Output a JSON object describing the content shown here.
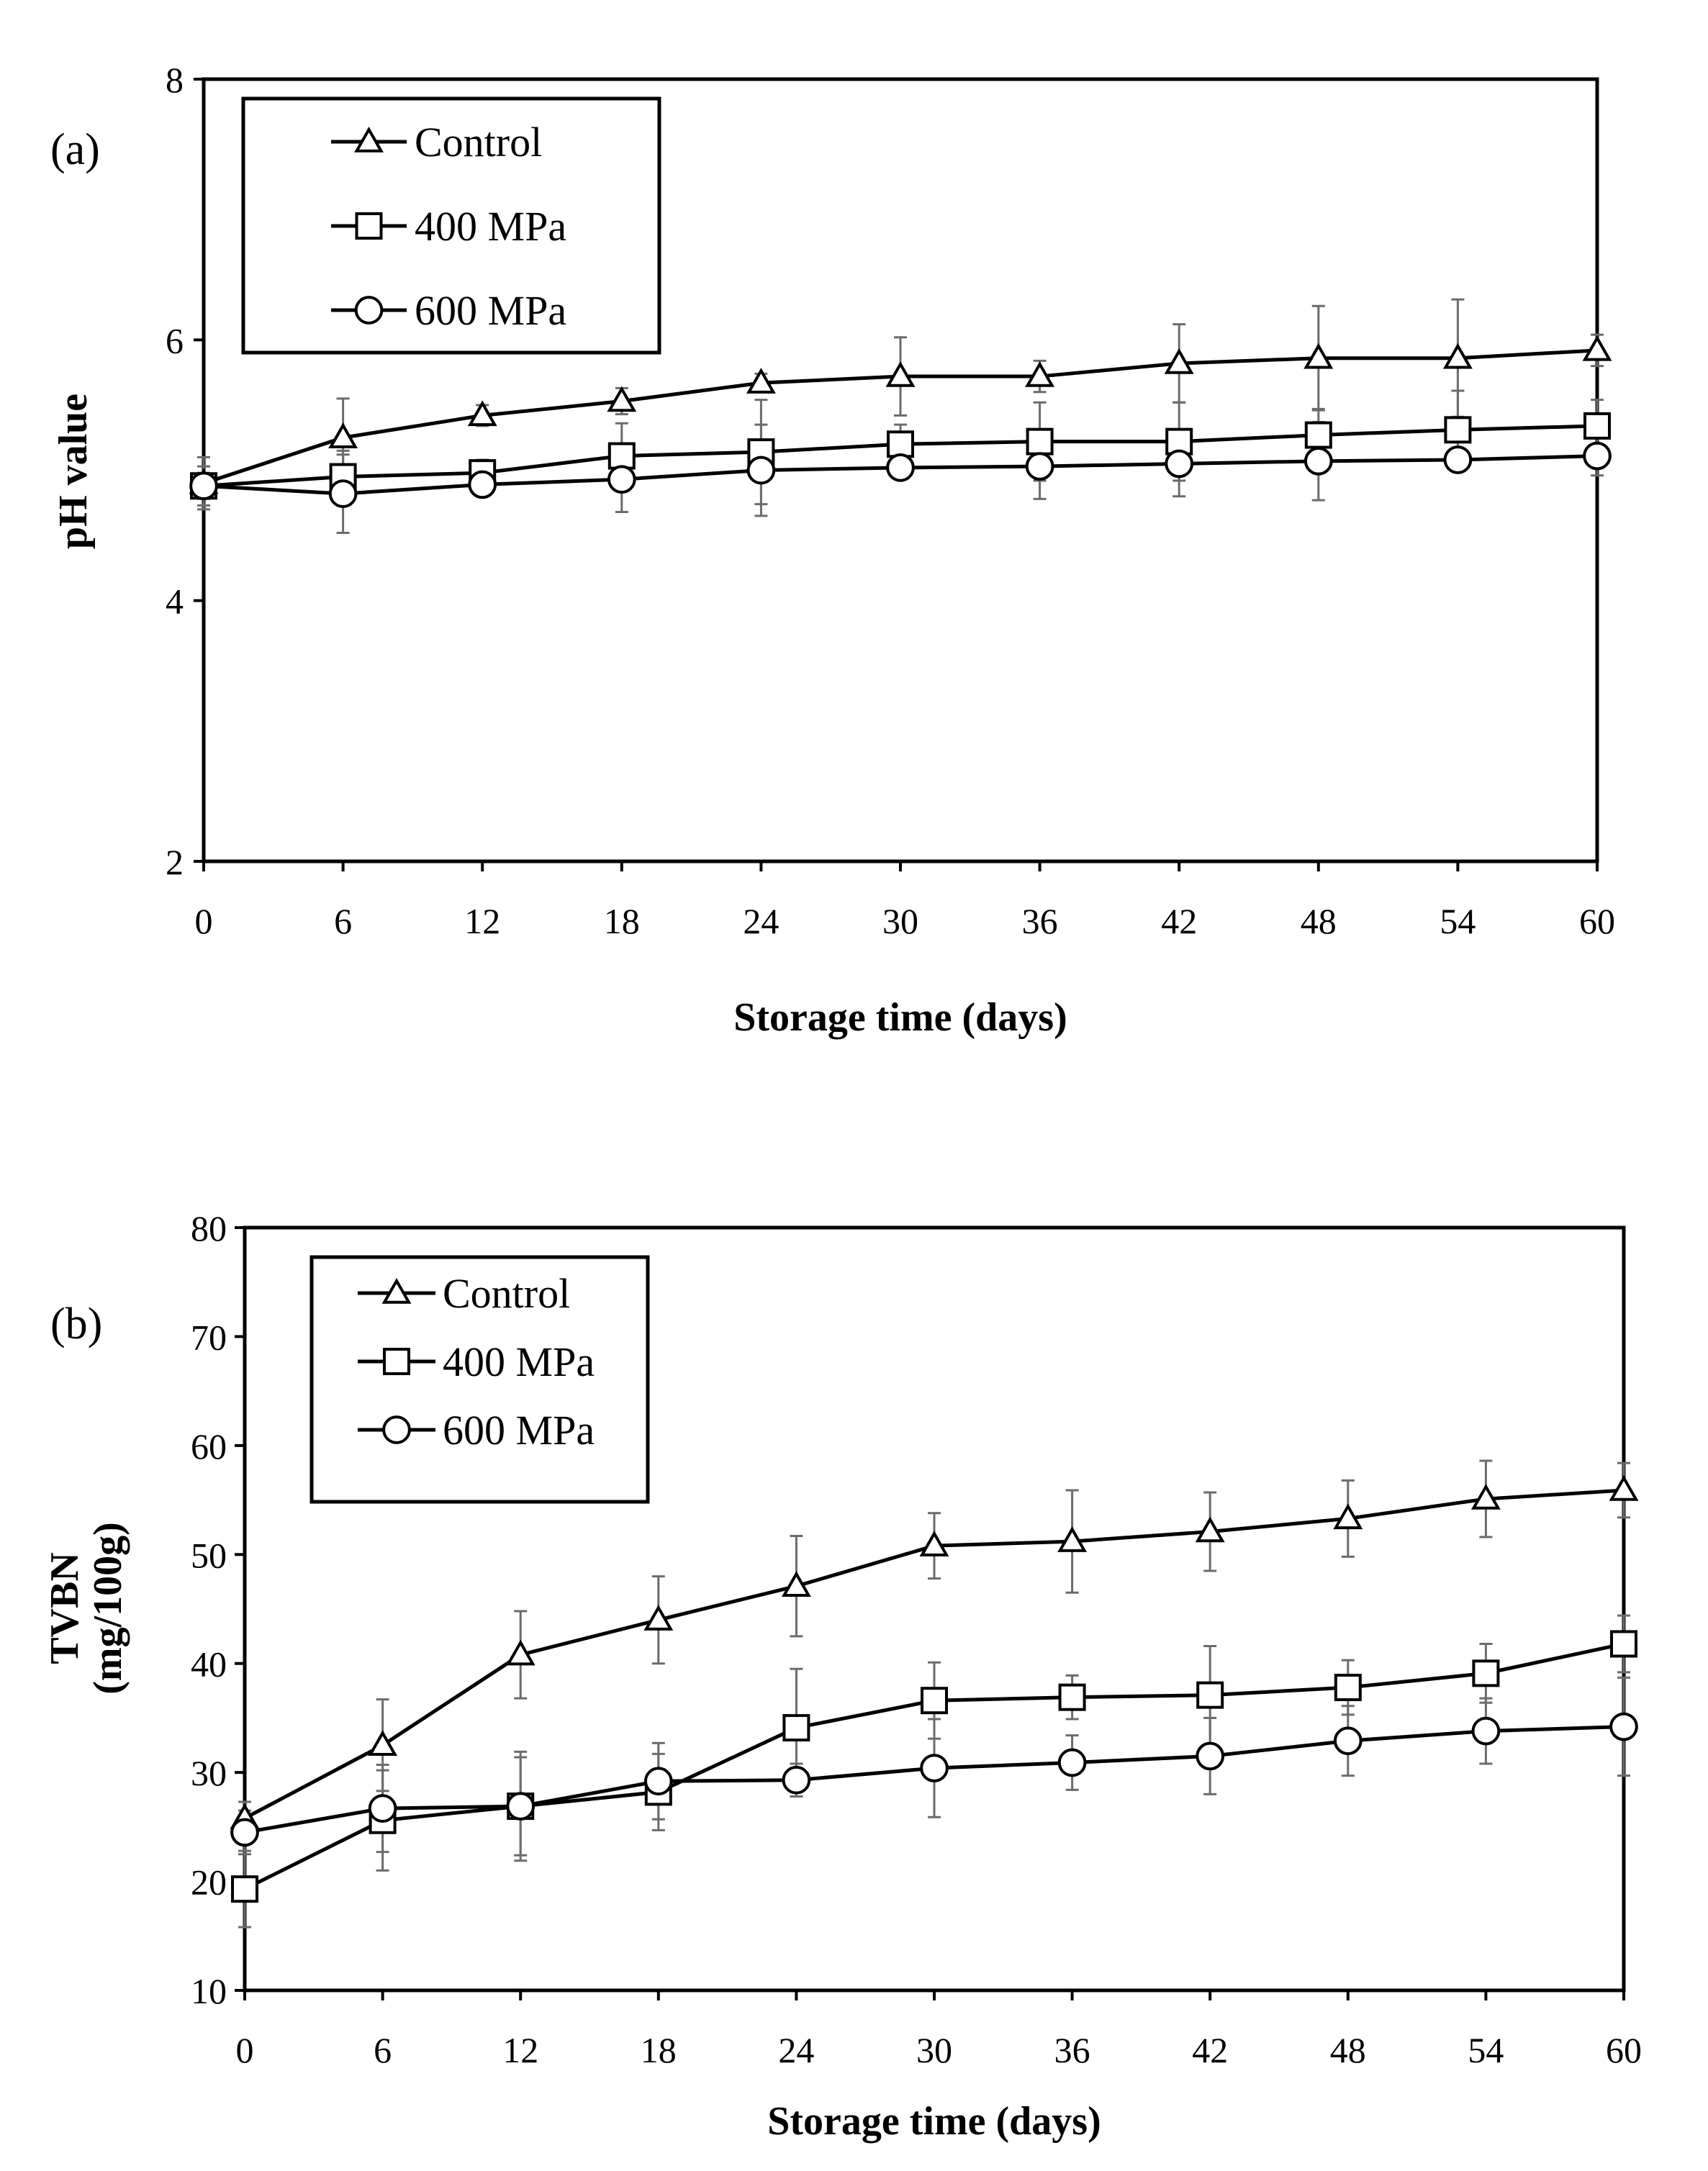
{
  "figure": {
    "colors": {
      "series": "#000000",
      "error_bars": "#6b6b6b",
      "background": "#ffffff"
    }
  },
  "chart_data": [
    {
      "panel": "(a)",
      "type": "line",
      "xlabel": "Storage time (days)",
      "ylabel": "pH value",
      "x": [
        0,
        6,
        12,
        18,
        24,
        30,
        36,
        42,
        48,
        54,
        60
      ],
      "xlim": [
        0,
        60
      ],
      "ylim": [
        2,
        8
      ],
      "yticks": [
        2,
        4,
        6,
        8
      ],
      "legend_position": "top-left",
      "series": [
        {
          "name": "Control",
          "marker": "triangle",
          "values": [
            4.9,
            5.25,
            5.42,
            5.53,
            5.67,
            5.72,
            5.72,
            5.82,
            5.86,
            5.86,
            5.92
          ],
          "errors": [
            0.2,
            0.3,
            0.08,
            0.1,
            0.07,
            0.3,
            0.12,
            0.3,
            0.4,
            0.45,
            0.12
          ]
        },
        {
          "name": "400 MPa",
          "marker": "square",
          "values": [
            4.88,
            4.95,
            4.98,
            5.11,
            5.14,
            5.2,
            5.22,
            5.22,
            5.27,
            5.31,
            5.34
          ],
          "errors": [
            0.1,
            0.2,
            0.1,
            0.25,
            0.4,
            0.15,
            0.3,
            0.3,
            0.2,
            0.3,
            0.2
          ]
        },
        {
          "name": "600 MPa",
          "marker": "circle",
          "values": [
            4.88,
            4.82,
            4.89,
            4.93,
            5.0,
            5.02,
            5.03,
            5.05,
            5.07,
            5.08,
            5.11
          ],
          "errors": [
            0.15,
            0.3,
            0.05,
            0.25,
            0.35,
            0.05,
            0.25,
            0.25,
            0.3,
            0.05,
            0.15
          ]
        }
      ]
    },
    {
      "panel": "(b)",
      "type": "line",
      "xlabel": "Storage time (days)",
      "ylabel": "TVBN (mg/100g)",
      "ylabel_lines": [
        "TVBN",
        "(mg/100g)"
      ],
      "x": [
        0,
        6,
        12,
        18,
        24,
        30,
        36,
        42,
        48,
        54,
        60
      ],
      "xlim": [
        0,
        60
      ],
      "ylim": [
        10,
        80
      ],
      "yticks": [
        10,
        20,
        30,
        40,
        50,
        60,
        70,
        80
      ],
      "legend_position": "top-left",
      "series": [
        {
          "name": "Control",
          "marker": "triangle",
          "values": [
            25.8,
            32.5,
            40.8,
            44.0,
            47.1,
            50.8,
            51.2,
            52.1,
            53.3,
            55.1,
            55.9
          ],
          "errors": [
            1.5,
            4.2,
            4.0,
            4.0,
            4.6,
            3.0,
            4.7,
            3.6,
            3.5,
            3.5,
            2.5
          ]
        },
        {
          "name": "400 MPa",
          "marker": "square",
          "values": [
            19.3,
            25.6,
            26.9,
            28.2,
            34.1,
            36.6,
            36.9,
            37.1,
            37.8,
            39.1,
            41.8
          ],
          "errors": [
            3.5,
            4.6,
            5.0,
            3.5,
            5.4,
            3.5,
            2.0,
            4.5,
            2.5,
            2.7,
            2.6
          ]
        },
        {
          "name": "600 MPa",
          "marker": "circle",
          "values": [
            24.5,
            26.7,
            26.9,
            29.2,
            29.3,
            30.4,
            30.9,
            31.5,
            32.9,
            33.8,
            34.2
          ],
          "errors": [
            2.0,
            4.0,
            4.5,
            3.5,
            1.5,
            4.5,
            2.5,
            3.5,
            3.2,
            3.0,
            4.5
          ]
        }
      ]
    }
  ]
}
